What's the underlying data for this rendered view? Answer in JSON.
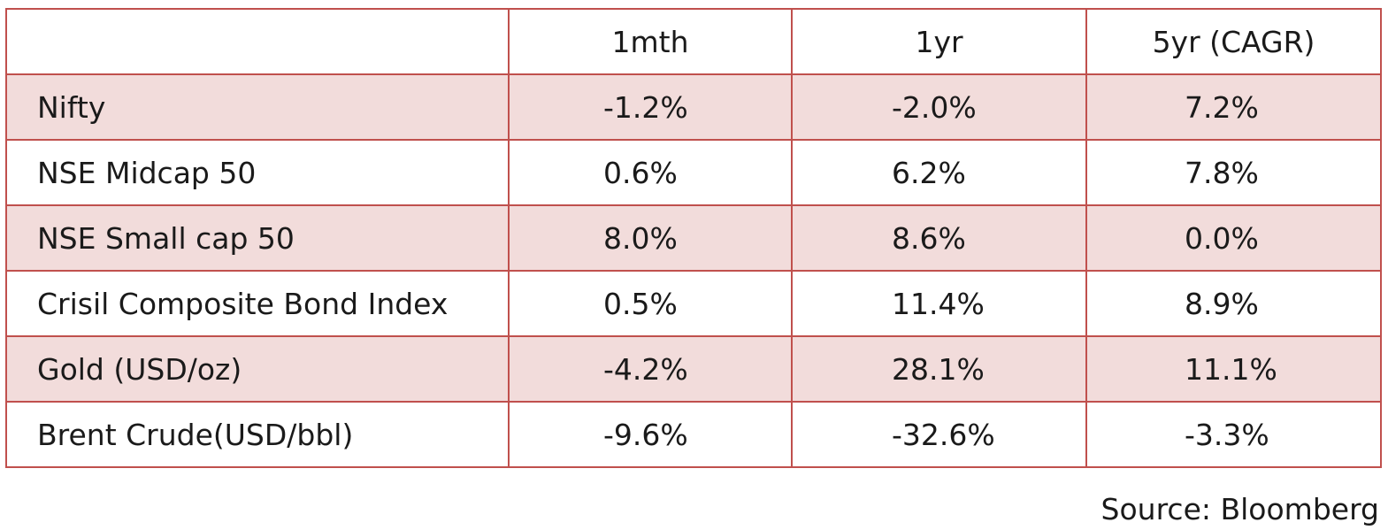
{
  "table": {
    "columns": [
      "",
      "1mth",
      "1yr",
      "5yr (CAGR)"
    ],
    "rows": [
      {
        "name": "Nifty",
        "m1": "-1.2%",
        "y1": "-2.0%",
        "y5": "7.2%"
      },
      {
        "name": "NSE Midcap 50",
        "m1": "0.6%",
        "y1": "6.2%",
        "y5": "7.8%"
      },
      {
        "name": "NSE Small cap 50",
        "m1": "8.0%",
        "y1": "8.6%",
        "y5": "0.0%"
      },
      {
        "name": "Crisil Composite Bond Index",
        "m1": "0.5%",
        "y1": "11.4%",
        "y5": "8.9%"
      },
      {
        "name": "Gold (USD/oz)",
        "m1": "-4.2%",
        "y1": "28.1%",
        "y5": "11.1%"
      },
      {
        "name": "Brent Crude(USD/bbl)",
        "m1": "-9.6%",
        "y1": "-32.6%",
        "y5": "-3.3%"
      }
    ]
  },
  "source": "Source: Bloomberg",
  "colors": {
    "border": "#c0504d",
    "shaded_row": "#f2dcdb"
  }
}
